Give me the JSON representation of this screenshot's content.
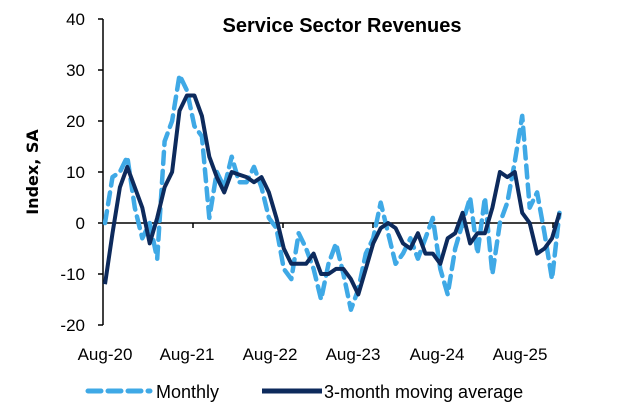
{
  "chart_data": {
    "type": "line",
    "title": "Service Sector Revenues",
    "xlabel": "",
    "ylabel": "Index, SA",
    "ylim": [
      -20,
      40
    ],
    "yticks": [
      -20,
      -10,
      0,
      10,
      20,
      30,
      40
    ],
    "xtick_labels": [
      "Aug-20",
      "Aug-21",
      "Aug-22",
      "Aug-23",
      "Aug-24",
      "Aug-25"
    ],
    "x_start": "Aug-20",
    "x_frequency": "monthly",
    "grid": false,
    "legend_position": "bottom",
    "series": [
      {
        "name": "Monthly",
        "style": "dashed",
        "color": "#3FA9E6",
        "values": [
          0,
          9,
          10,
          13,
          3,
          -3,
          0,
          -7,
          16,
          20,
          29,
          26,
          19,
          17,
          1,
          10,
          7,
          13,
          8,
          8,
          11,
          7,
          1,
          -1,
          -9,
          -11,
          -2,
          -5,
          -9,
          -15,
          -8,
          -4,
          -10,
          -17,
          -13,
          -6,
          -3,
          4,
          -2,
          -8,
          -6,
          -3,
          -7,
          -3,
          1,
          -9,
          -14,
          -5,
          0,
          5,
          -6,
          5,
          -10,
          0,
          4,
          12,
          21,
          3,
          6,
          -2,
          -11,
          2
        ]
      },
      {
        "name": "3-month moving average",
        "style": "solid",
        "color": "#0D2A5C",
        "values": [
          -12,
          -2,
          7,
          11,
          7,
          3,
          -4,
          1,
          7,
          10,
          22,
          25,
          25,
          21,
          13,
          9,
          6,
          10,
          9.5,
          9,
          8,
          9,
          6,
          1,
          -5,
          -8,
          -8,
          -8,
          -6,
          -10,
          -10,
          -9,
          -9,
          -11,
          -14,
          -9,
          -4,
          -1,
          0,
          -1,
          -4,
          -5,
          -2,
          -6,
          -6,
          -8,
          -3,
          -2,
          2,
          -4,
          -2,
          -2,
          3,
          10,
          9,
          10,
          2,
          0,
          -6,
          -5,
          -3,
          2
        ]
      }
    ]
  }
}
